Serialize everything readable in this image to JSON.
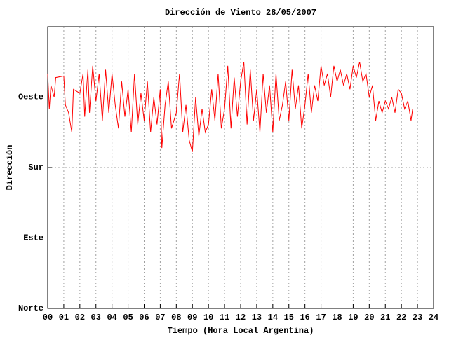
{
  "chart_data": {
    "type": "line",
    "title": "Dirección de Viento 28/05/2007",
    "x_label": "Tiempo (Hora Local Argentina)",
    "y_label": "Dirección",
    "xlim": [
      0,
      24
    ],
    "ylim": [
      0,
      360
    ],
    "grid": true,
    "xticks": [
      {
        "value": 0,
        "label": "00"
      },
      {
        "value": 1,
        "label": "01"
      },
      {
        "value": 2,
        "label": "02"
      },
      {
        "value": 3,
        "label": "03"
      },
      {
        "value": 4,
        "label": "04"
      },
      {
        "value": 5,
        "label": "05"
      },
      {
        "value": 6,
        "label": "06"
      },
      {
        "value": 7,
        "label": "07"
      },
      {
        "value": 8,
        "label": "08"
      },
      {
        "value": 9,
        "label": "09"
      },
      {
        "value": 10,
        "label": "10"
      },
      {
        "value": 11,
        "label": "11"
      },
      {
        "value": 12,
        "label": "12"
      },
      {
        "value": 13,
        "label": "13"
      },
      {
        "value": 14,
        "label": "14"
      },
      {
        "value": 15,
        "label": "15"
      },
      {
        "value": 16,
        "label": "16"
      },
      {
        "value": 17,
        "label": "17"
      },
      {
        "value": 18,
        "label": "18"
      },
      {
        "value": 19,
        "label": "19"
      },
      {
        "value": 20,
        "label": "20"
      },
      {
        "value": 21,
        "label": "21"
      },
      {
        "value": 22,
        "label": "22"
      },
      {
        "value": 23,
        "label": "23"
      },
      {
        "value": 24,
        "label": "24"
      }
    ],
    "yticks": [
      {
        "value": 0,
        "label": "Norte"
      },
      {
        "value": 90,
        "label": "Este"
      },
      {
        "value": 180,
        "label": "Sur"
      },
      {
        "value": 270,
        "label": "Oeste"
      }
    ],
    "x": [
      0.0,
      0.1,
      0.2,
      0.4,
      0.5,
      1.0,
      1.1,
      1.3,
      1.5,
      1.6,
      2.0,
      2.2,
      2.3,
      2.5,
      2.6,
      2.8,
      3.0,
      3.2,
      3.4,
      3.6,
      3.8,
      4.0,
      4.2,
      4.4,
      4.6,
      4.8,
      5.0,
      5.2,
      5.4,
      5.6,
      5.8,
      6.0,
      6.2,
      6.4,
      6.6,
      6.8,
      7.0,
      7.1,
      7.3,
      7.5,
      7.7,
      8.0,
      8.2,
      8.4,
      8.6,
      8.8,
      9.0,
      9.2,
      9.4,
      9.6,
      9.8,
      10.0,
      10.2,
      10.4,
      10.6,
      10.8,
      11.0,
      11.2,
      11.4,
      11.6,
      11.8,
      12.0,
      12.2,
      12.4,
      12.6,
      12.8,
      13.0,
      13.2,
      13.4,
      13.6,
      13.8,
      14.0,
      14.2,
      14.4,
      14.6,
      14.8,
      15.0,
      15.2,
      15.4,
      15.6,
      15.8,
      16.0,
      16.2,
      16.4,
      16.6,
      16.8,
      17.0,
      17.2,
      17.4,
      17.6,
      17.8,
      18.0,
      18.2,
      18.4,
      18.6,
      18.8,
      19.0,
      19.2,
      19.4,
      19.6,
      19.8,
      20.0,
      20.2,
      20.4,
      20.6,
      20.8,
      21.0,
      21.2,
      21.4,
      21.6,
      21.8,
      22.0,
      22.2,
      22.4,
      22.6,
      22.7
    ],
    "series": [
      {
        "color": "#ff0000",
        "values": [
          300,
          255,
          285,
          270,
          295,
          297,
          260,
          250,
          225,
          280,
          275,
          300,
          245,
          305,
          250,
          310,
          265,
          300,
          240,
          305,
          250,
          300,
          260,
          230,
          290,
          245,
          280,
          225,
          300,
          235,
          275,
          240,
          290,
          225,
          270,
          235,
          280,
          205,
          260,
          290,
          230,
          250,
          300,
          225,
          260,
          215,
          200,
          270,
          220,
          255,
          225,
          235,
          280,
          240,
          300,
          230,
          255,
          310,
          230,
          295,
          245,
          290,
          315,
          235,
          305,
          240,
          280,
          225,
          300,
          250,
          285,
          225,
          300,
          240,
          260,
          290,
          240,
          305,
          255,
          285,
          230,
          260,
          300,
          250,
          285,
          265,
          310,
          285,
          300,
          270,
          310,
          290,
          305,
          285,
          300,
          280,
          310,
          295,
          315,
          290,
          300,
          270,
          285,
          240,
          265,
          250,
          265,
          255,
          270,
          250,
          280,
          275,
          255,
          265,
          240,
          255
        ]
      }
    ]
  }
}
